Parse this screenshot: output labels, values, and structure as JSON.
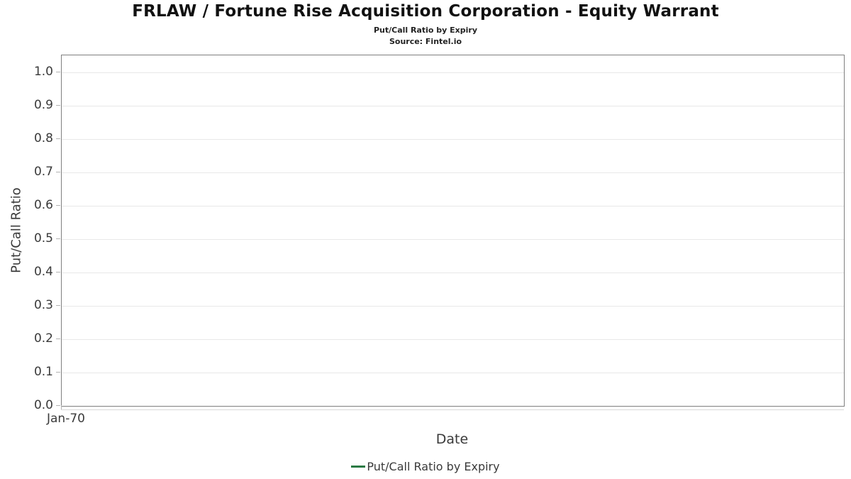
{
  "chart_data": {
    "type": "line",
    "title": "FRLAW / Fortune Rise Acquisition Corporation - Equity Warrant",
    "subtitle": "Put/Call Ratio by Expiry",
    "source": "Source: Fintel.io",
    "xlabel": "Date",
    "ylabel": "Put/Call Ratio",
    "x": [],
    "x_tick_labels": [
      "Jan-70"
    ],
    "series": [
      {
        "name": "Put/Call Ratio by Expiry",
        "values": [],
        "color": "#2b7a44"
      }
    ],
    "yticks": [
      0.0,
      0.1,
      0.2,
      0.3,
      0.4,
      0.5,
      0.6,
      0.7,
      0.8,
      0.9,
      1.0
    ],
    "ytick_labels": [
      "0.0",
      "0.1",
      "0.2",
      "0.3",
      "0.4",
      "0.5",
      "0.6",
      "0.7",
      "0.8",
      "0.9",
      "1.0"
    ],
    "ylim": [
      0,
      1.051
    ],
    "grid": true,
    "legend_position": "bottom",
    "colors": {
      "series_green": "#2b7a44",
      "plot_border": "#7f7f7f",
      "gridline": "#e8e8e8",
      "tick_mark": "#b3b3b3",
      "text": "#3a3a3a",
      "title_text": "#111111",
      "background": "#ffffff"
    }
  }
}
